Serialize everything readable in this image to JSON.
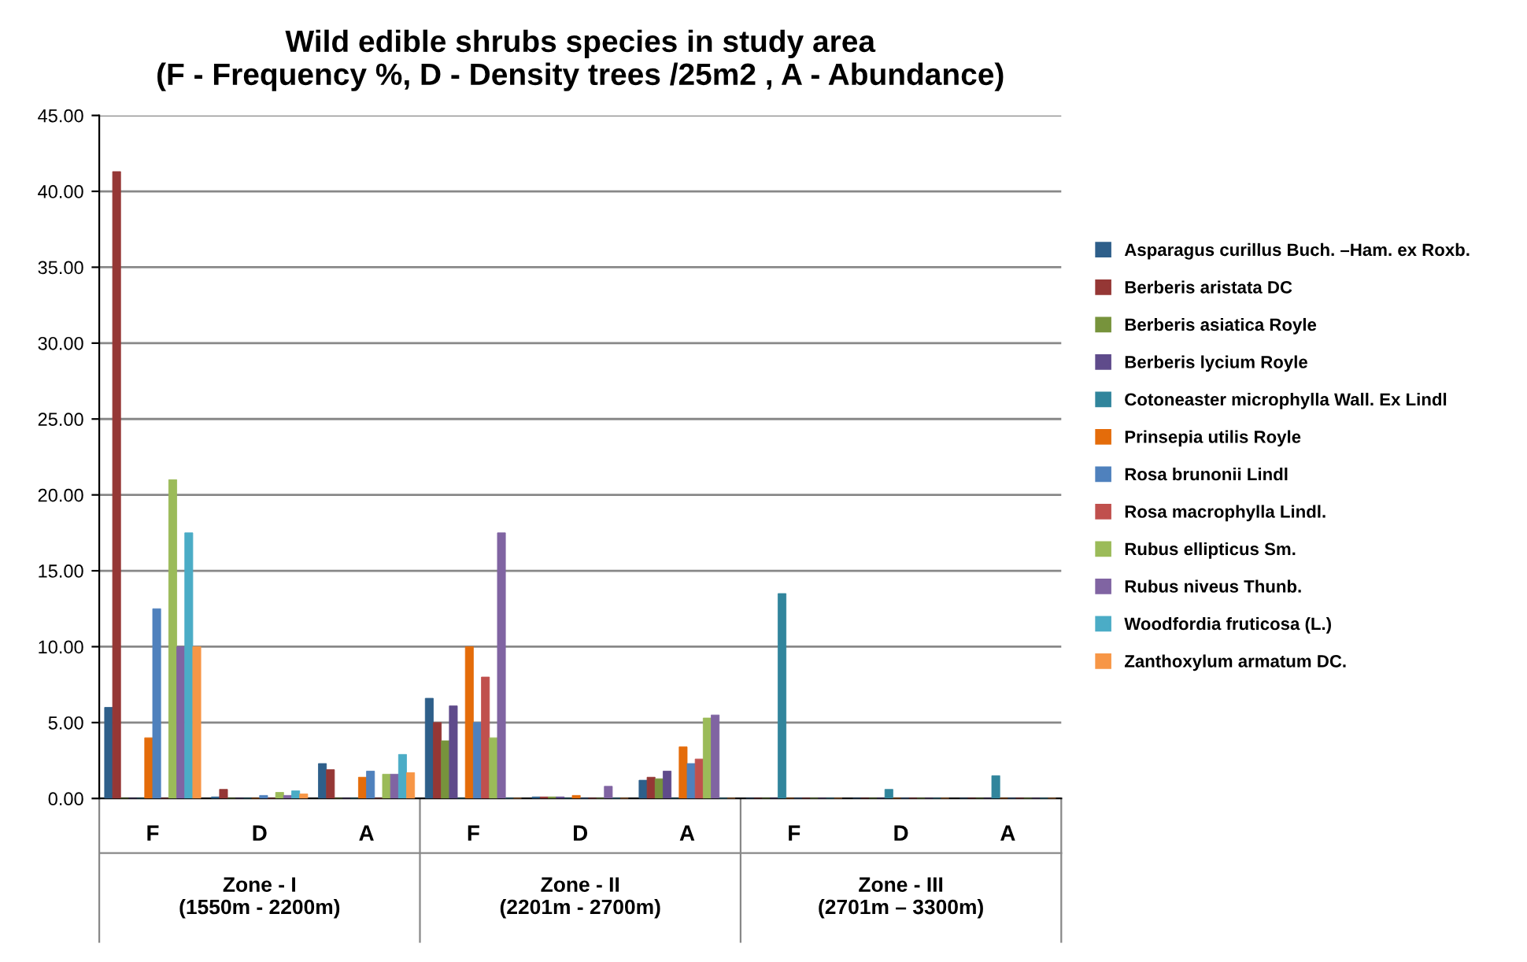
{
  "chart_data": {
    "type": "bar",
    "title": "Wild edible shrubs species in study area\n(F - Frequency %, D - Density trees /25m2 , A - Abundance)",
    "categories": [
      "F",
      "D",
      "A",
      "F",
      "D",
      "A",
      "F",
      "D",
      "A"
    ],
    "series": [
      {
        "name": "Asparagus curillus Buch. –Ham. ex Roxb.",
        "color": "#2e5f8a",
        "values": [
          6.0,
          0.1,
          2.3,
          6.6,
          0.1,
          1.2,
          0,
          0,
          0
        ]
      },
      {
        "name": "Berberis aristata DC",
        "color": "#953735",
        "values": [
          41.3,
          0.6,
          1.9,
          5.0,
          0.1,
          1.4,
          0,
          0,
          0
        ]
      },
      {
        "name": "Berberis asiatica Royle",
        "color": "#77933c",
        "values": [
          0,
          0,
          0,
          3.8,
          0.1,
          1.3,
          0,
          0,
          0
        ]
      },
      {
        "name": "Berberis lycium Royle",
        "color": "#5f4b8b",
        "values": [
          0,
          0,
          0,
          6.1,
          0.1,
          1.8,
          0,
          0,
          0
        ]
      },
      {
        "name": "Cotoneaster microphylla Wall. Ex Lindl",
        "color": "#31859c",
        "values": [
          0,
          0,
          0,
          0,
          0,
          0,
          13.5,
          0.6,
          1.5
        ]
      },
      {
        "name": "Prinsepia utilis Royle",
        "color": "#e46c0a",
        "values": [
          4.0,
          0,
          1.4,
          10.0,
          0.2,
          3.4,
          0,
          0,
          0
        ]
      },
      {
        "name": "Rosa brunonii Lindl",
        "color": "#4f81bd",
        "values": [
          12.5,
          0.2,
          1.8,
          5.0,
          null,
          2.3,
          0,
          0,
          0
        ]
      },
      {
        "name": "Rosa macrophylla Lindl.",
        "color": "#c0504d",
        "values": [
          0,
          0,
          0,
          8.0,
          null,
          2.6,
          0,
          0,
          0
        ]
      },
      {
        "name": "Rubus ellipticus Sm.",
        "color": "#9bbb59",
        "values": [
          21.0,
          0.4,
          1.6,
          4.0,
          null,
          5.3,
          0,
          0,
          0
        ]
      },
      {
        "name": "Rubus niveus Thunb.",
        "color": "#8064a2",
        "values": [
          10.0,
          0.2,
          1.6,
          17.5,
          0.8,
          5.5,
          0,
          0,
          0
        ]
      },
      {
        "name": "Woodfordia fruticosa (L.)",
        "color": "#4bacc6",
        "values": [
          17.5,
          0.5,
          2.9,
          0,
          0,
          0,
          0,
          0,
          0
        ]
      },
      {
        "name": "Zanthoxylum armatum DC.",
        "color": "#f79646",
        "values": [
          10.0,
          0.3,
          1.7,
          0,
          0,
          0,
          0,
          0,
          0
        ]
      }
    ],
    "annotations": [
      "Zone - I\n(1550m - 2200m)",
      "Zone - II\n(2201m - 2700m)",
      "Zone - III\n(2701m – 3300m)"
    ],
    "ylim": [
      0,
      45
    ],
    "yticks": [
      {
        "value": 0,
        "label": "0.00"
      },
      {
        "value": 5,
        "label": "5.00"
      },
      {
        "value": 10,
        "label": "10.00"
      },
      {
        "value": 15,
        "label": "15.00"
      },
      {
        "value": 20,
        "label": "20.00"
      },
      {
        "value": 25,
        "label": "25.00"
      },
      {
        "value": 30,
        "label": "30.00"
      },
      {
        "value": 35,
        "label": "35.00"
      },
      {
        "value": 40,
        "label": "40.00"
      },
      {
        "value": 45,
        "label": "45.00"
      }
    ],
    "grid": "y",
    "legend": "right"
  }
}
